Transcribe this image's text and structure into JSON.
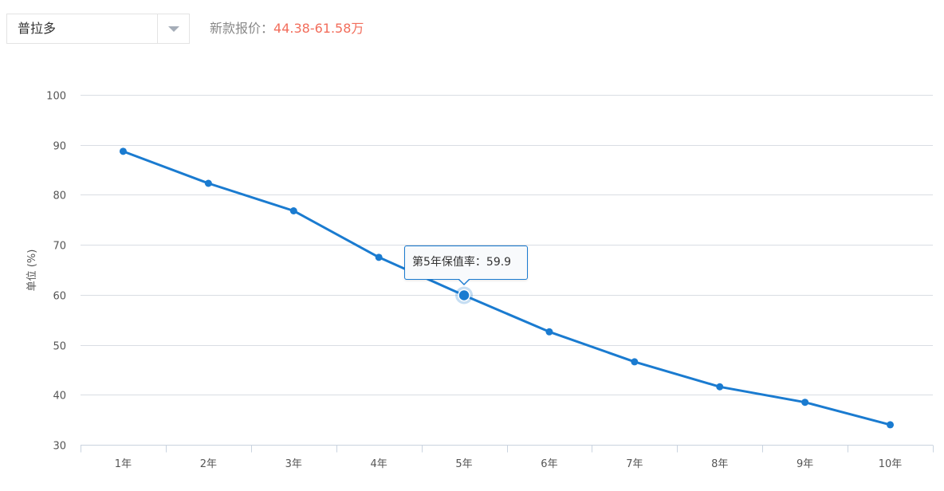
{
  "model_selector": {
    "value": "普拉多",
    "toggle_icon": "caret-down-icon"
  },
  "price": {
    "label": "新款报价：",
    "value": "44.38-61.58万",
    "value_color": "#f26d5b"
  },
  "tooltip": {
    "text": "第5年保值率：59.9",
    "series_index": 4
  },
  "chart_data": {
    "type": "line",
    "categories": [
      "1年",
      "2年",
      "3年",
      "4年",
      "5年",
      "6年",
      "7年",
      "8年",
      "9年",
      "10年"
    ],
    "series": [
      {
        "values": [
          88.7,
          82.3,
          76.8,
          67.5,
          59.9,
          52.6,
          46.6,
          41.6,
          38.5,
          34.0
        ],
        "color": "#1a7bd0"
      }
    ],
    "ylabel": "单位 (%)",
    "ylim": [
      30,
      100
    ],
    "yticks": [
      "100",
      "90",
      "80",
      "70",
      "60",
      "50",
      "40",
      "30"
    ],
    "grid": true,
    "legend": "none"
  }
}
